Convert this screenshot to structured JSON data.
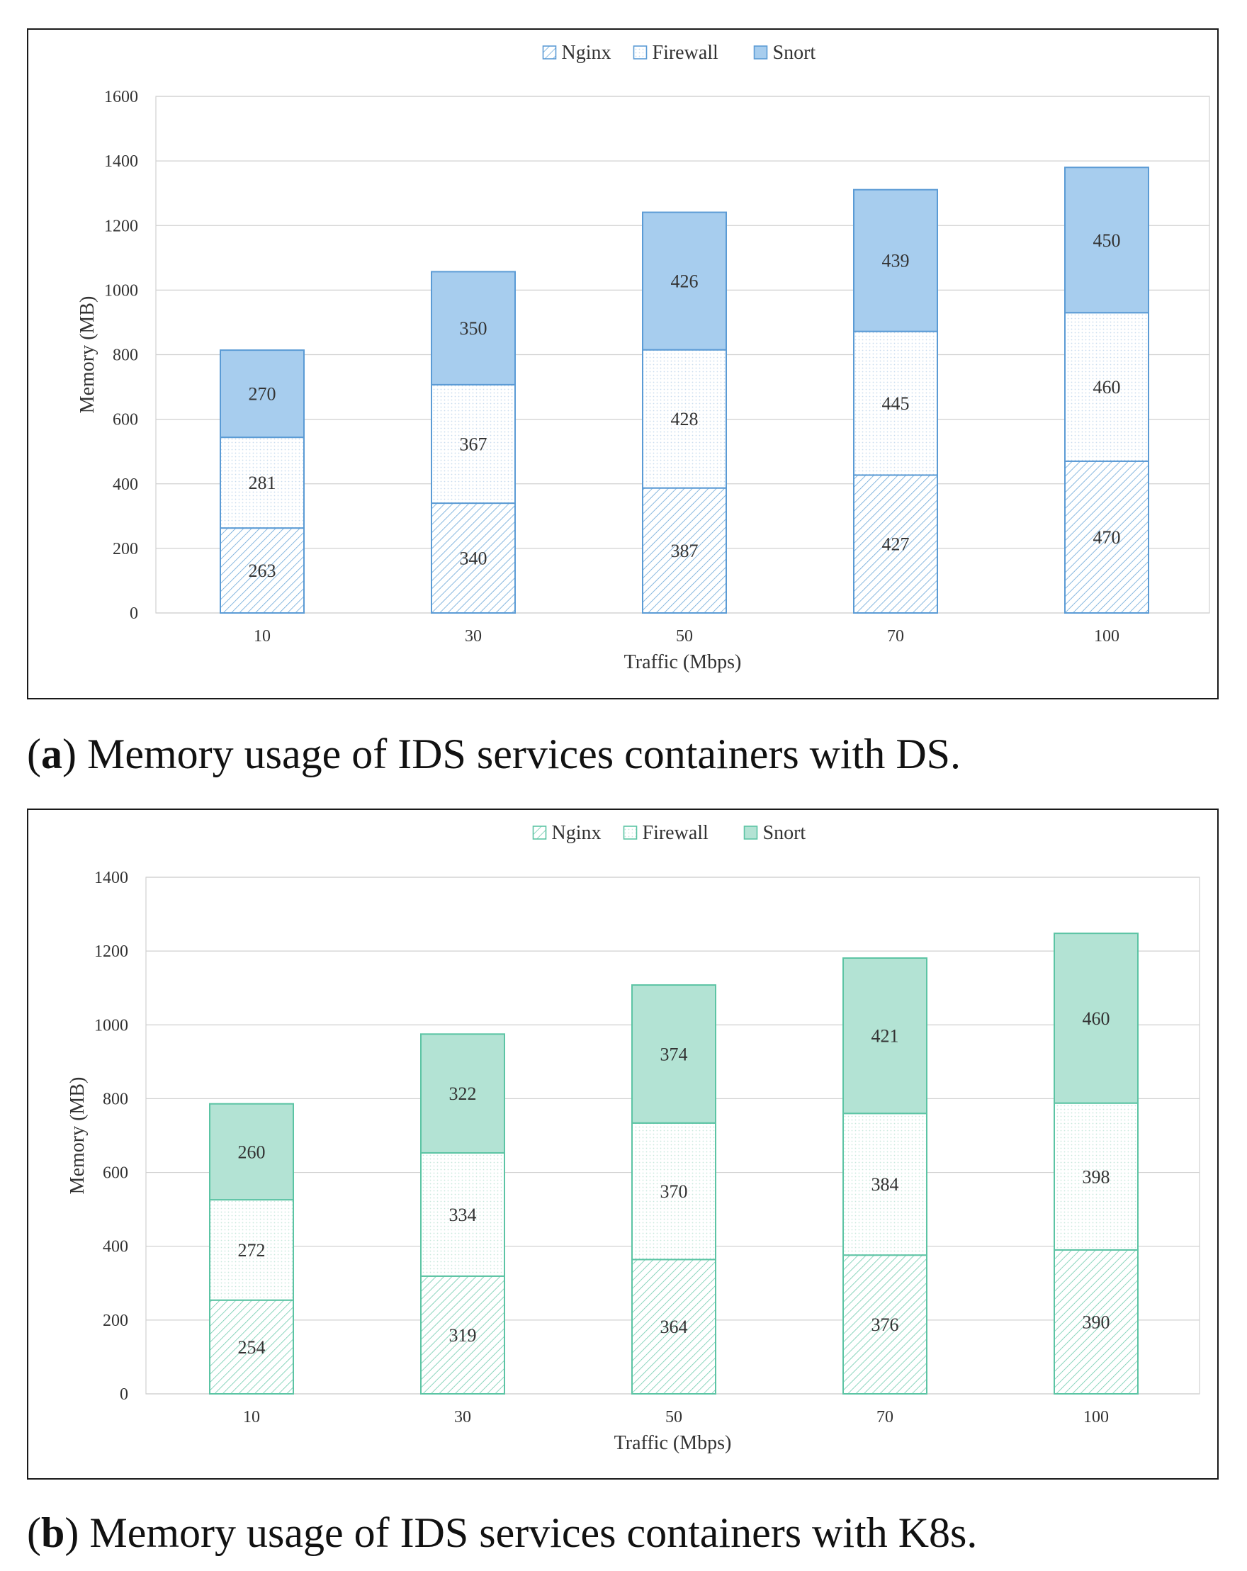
{
  "chart_data": [
    {
      "id": "a",
      "type": "bar",
      "stacked": true,
      "categories": [
        "10",
        "30",
        "50",
        "70",
        "100"
      ],
      "series": [
        {
          "name": "Nginx",
          "pattern": "hatch",
          "values": [
            263,
            340,
            387,
            427,
            470
          ]
        },
        {
          "name": "Firewall",
          "pattern": "dots",
          "values": [
            281,
            367,
            428,
            445,
            460
          ]
        },
        {
          "name": "Snort",
          "pattern": "solid",
          "values": [
            270,
            350,
            426,
            439,
            450
          ]
        }
      ],
      "xlabel": "Traffic (Mbps)",
      "ylabel": "Memory (MB)",
      "ylim": [
        0,
        1600
      ],
      "yticks": [
        0,
        200,
        400,
        600,
        800,
        1000,
        1200,
        1400,
        1600
      ],
      "grid": true,
      "legend": "top-center",
      "colors": {
        "stroke": "#5b9bd5",
        "fill": "#a7cdee",
        "hatch": "#6aa6d8",
        "dot": "#c9dcee"
      },
      "caption_label": "a",
      "caption_text": "Memory usage of IDS services containers with DS."
    },
    {
      "id": "b",
      "type": "bar",
      "stacked": true,
      "categories": [
        "10",
        "30",
        "50",
        "70",
        "100"
      ],
      "series": [
        {
          "name": "Nginx",
          "pattern": "hatch",
          "values": [
            254,
            319,
            364,
            376,
            390
          ]
        },
        {
          "name": "Firewall",
          "pattern": "dots",
          "values": [
            272,
            334,
            370,
            384,
            398
          ]
        },
        {
          "name": "Snort",
          "pattern": "solid",
          "values": [
            260,
            322,
            374,
            421,
            460
          ]
        }
      ],
      "xlabel": "Traffic (Mbps)",
      "ylabel": "Memory (MB)",
      "ylim": [
        0,
        1400
      ],
      "yticks": [
        0,
        200,
        400,
        600,
        800,
        1000,
        1200,
        1400
      ],
      "grid": true,
      "legend": "top-center",
      "colors": {
        "stroke": "#5cc4a4",
        "fill": "#b3e3d4",
        "hatch": "#6fcbae",
        "dot": "#c8e8dd"
      },
      "caption_label": "b",
      "caption_text": "Memory usage of IDS services containers with K8s."
    }
  ]
}
